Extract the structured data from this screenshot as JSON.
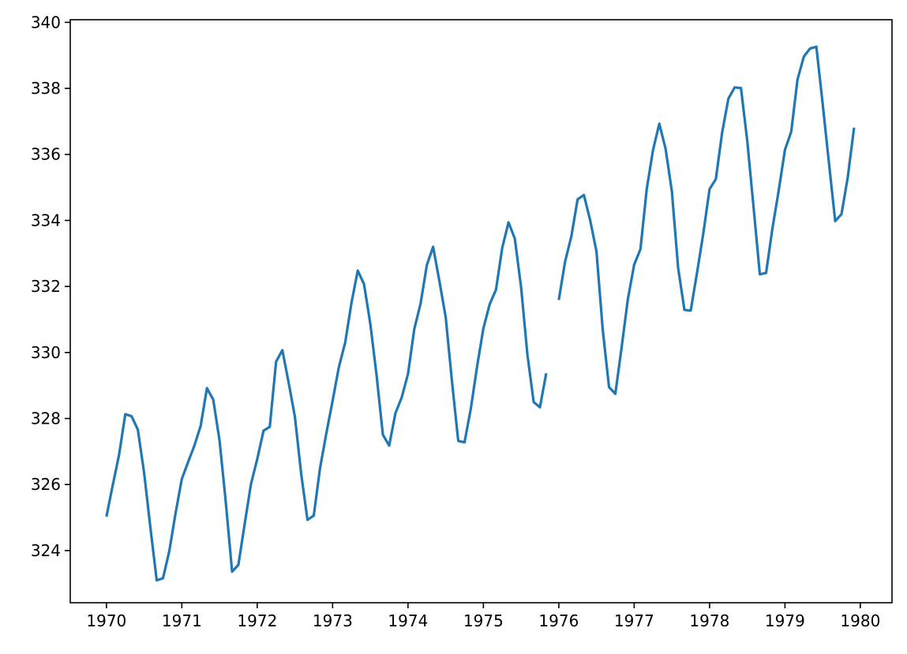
{
  "chart_data": {
    "type": "line",
    "title": "",
    "xlabel": "",
    "ylabel": "",
    "xlim": [
      1969.52,
      1980.42
    ],
    "ylim": [
      322.42,
      340.08
    ],
    "grid": false,
    "x_ticks": [
      1970,
      1971,
      1972,
      1973,
      1974,
      1975,
      1976,
      1977,
      1978,
      1979,
      1980
    ],
    "y_ticks": [
      324,
      326,
      328,
      330,
      332,
      334,
      336,
      338,
      340
    ],
    "x_tick_labels": [
      "1970",
      "1971",
      "1972",
      "1973",
      "1974",
      "1975",
      "1976",
      "1977",
      "1978",
      "1979",
      "1980"
    ],
    "y_tick_labels": [
      "324",
      "326",
      "328",
      "330",
      "332",
      "334",
      "336",
      "338",
      "340"
    ],
    "series": [
      {
        "color": "#1f77b4",
        "x": [
          1970.0,
          1970.0833,
          1970.1667,
          1970.25,
          1970.3333,
          1970.4167,
          1970.5,
          1970.5833,
          1970.6667,
          1970.75,
          1970.8333,
          1970.9167,
          1971.0,
          1971.0833,
          1971.1667,
          1971.25,
          1971.3333,
          1971.4167,
          1971.5,
          1971.5833,
          1971.6667,
          1971.75,
          1971.8333,
          1971.9167,
          1972.0,
          1972.0833,
          1972.1667,
          1972.25,
          1972.3333,
          1972.4167,
          1972.5,
          1972.5833,
          1972.6667,
          1972.75,
          1972.8333,
          1972.9167,
          1973.0,
          1973.0833,
          1973.1667,
          1973.25,
          1973.3333,
          1973.4167,
          1973.5,
          1973.5833,
          1973.6667,
          1973.75,
          1973.8333,
          1973.9167,
          1974.0,
          1974.0833,
          1974.1667,
          1974.25,
          1974.3333,
          1974.4167,
          1974.5,
          1974.5833,
          1974.6667,
          1974.75,
          1974.8333,
          1974.9167,
          1975.0,
          1975.0833,
          1975.1667,
          1975.25,
          1975.3333,
          1975.4167,
          1975.5,
          1975.5833,
          1975.6667,
          1975.75,
          1975.8333,
          1975.9167,
          1976.0,
          1976.0833,
          1976.1667,
          1976.25,
          1976.3333,
          1976.4167,
          1976.5,
          1976.5833,
          1976.6667,
          1976.75,
          1976.8333,
          1976.9167,
          1977.0,
          1977.0833,
          1977.1667,
          1977.25,
          1977.3333,
          1977.4167,
          1977.5,
          1977.5833,
          1977.6667,
          1977.75,
          1977.8333,
          1977.9167,
          1978.0,
          1978.0833,
          1978.1667,
          1978.25,
          1978.3333,
          1978.4167,
          1978.5,
          1978.5833,
          1978.6667,
          1978.75,
          1978.8333,
          1978.9167,
          1979.0,
          1979.0833,
          1979.1667,
          1979.25,
          1979.3333,
          1979.4167,
          1979.5,
          1979.5833,
          1979.6667,
          1979.75,
          1979.8333,
          1979.9167
        ],
        "values": [
          325.03,
          325.98,
          326.89,
          328.13,
          328.07,
          327.66,
          326.35,
          324.69,
          323.1,
          323.16,
          323.98,
          325.13,
          326.17,
          326.68,
          327.18,
          327.78,
          328.92,
          328.57,
          327.34,
          325.46,
          323.36,
          323.57,
          324.8,
          326.01,
          326.77,
          327.63,
          327.75,
          329.72,
          330.07,
          329.09,
          328.05,
          326.32,
          324.93,
          325.06,
          326.5,
          327.55,
          328.54,
          329.56,
          330.3,
          331.5,
          332.48,
          332.07,
          330.87,
          329.31,
          327.51,
          327.18,
          328.16,
          328.64,
          329.35,
          330.71,
          331.48,
          332.65,
          333.2,
          332.16,
          331.07,
          329.12,
          327.32,
          327.28,
          328.3,
          329.58,
          330.73,
          331.46,
          331.9,
          333.17,
          333.94,
          333.45,
          331.98,
          329.95,
          328.5,
          328.34,
          329.37,
          null,
          331.59,
          332.75,
          333.52,
          334.64,
          334.77,
          334.0,
          333.06,
          330.68,
          328.95,
          328.75,
          330.15,
          331.62,
          332.66,
          333.13,
          334.95,
          336.13,
          336.93,
          336.17,
          334.88,
          332.56,
          331.29,
          331.27,
          332.41,
          333.6,
          334.95,
          335.25,
          336.66,
          337.69,
          338.03,
          338.01,
          336.41,
          334.41,
          332.37,
          332.41,
          333.75,
          334.9,
          336.14,
          336.69,
          338.27,
          338.96,
          339.21,
          339.26,
          337.54,
          335.75,
          333.98,
          334.19,
          335.31,
          336.81
        ]
      }
    ]
  }
}
